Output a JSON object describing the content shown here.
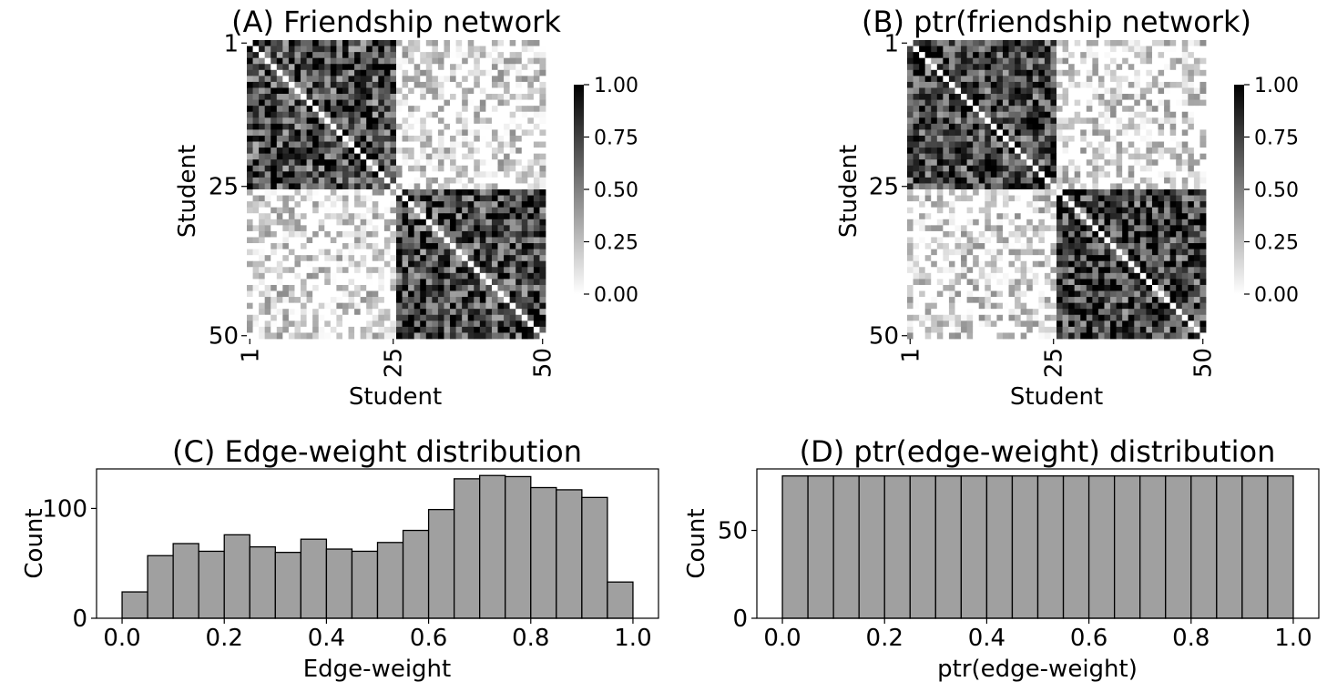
{
  "chart_data": [
    {
      "type": "heatmap",
      "title": "(A) Friendship network",
      "xlabel": "Student",
      "ylabel": "Student",
      "n": 50,
      "tick_labels": [
        "1",
        "25",
        "50"
      ],
      "tick_positions": [
        1,
        25,
        50
      ],
      "colorbar_ticks": [
        "0.00",
        "0.25",
        "0.50",
        "0.75",
        "1.00"
      ],
      "colorbar_range": [
        0,
        1
      ],
      "colormap": [
        "#ffffff",
        "#000000"
      ],
      "block_structure": {
        "block_boundary": 25,
        "within_block_mean": 0.68,
        "between_block_mean": 0.12
      }
    },
    {
      "type": "heatmap",
      "title": "(B) ptr(friendship network)",
      "xlabel": "Student",
      "ylabel": "Student",
      "n": 50,
      "tick_labels": [
        "1",
        "25",
        "50"
      ],
      "tick_positions": [
        1,
        25,
        50
      ],
      "colorbar_ticks": [
        "0.00",
        "0.25",
        "0.50",
        "0.75",
        "1.00"
      ],
      "colorbar_range": [
        0,
        1
      ],
      "colormap": [
        "#ffffff",
        "#000000"
      ],
      "block_structure": {
        "block_boundary": 25,
        "within_block_mean": 0.7,
        "between_block_mean": 0.13
      }
    },
    {
      "type": "bar",
      "title": "(C) Edge-weight distribution",
      "xlabel": "Edge-weight",
      "ylabel": "Count",
      "bin_edges": [
        0.0,
        0.05,
        0.1,
        0.15,
        0.2,
        0.25,
        0.3,
        0.35,
        0.4,
        0.45,
        0.5,
        0.55,
        0.6,
        0.65,
        0.7,
        0.75,
        0.8,
        0.85,
        0.9,
        0.95,
        1.0
      ],
      "values": [
        24,
        57,
        68,
        61,
        76,
        65,
        60,
        72,
        63,
        61,
        69,
        80,
        99,
        127,
        130,
        129,
        119,
        117,
        110,
        33
      ],
      "xlim": [
        -0.05,
        1.05
      ],
      "ylim": [
        0,
        136
      ],
      "xticks": [
        0.0,
        0.2,
        0.4,
        0.6,
        0.8,
        1.0
      ],
      "xtick_labels": [
        "0.0",
        "0.2",
        "0.4",
        "0.6",
        "0.8",
        "1.0"
      ],
      "yticks": [
        0,
        100
      ],
      "ytick_labels": [
        "0",
        "100"
      ],
      "bar_color": "#a0a0a0"
    },
    {
      "type": "bar",
      "title": "(D) ptr(edge-weight) distribution",
      "xlabel": "ptr(edge-weight)",
      "ylabel": "Count",
      "bin_edges": [
        0.0,
        0.05,
        0.1,
        0.15,
        0.2,
        0.25,
        0.3,
        0.35,
        0.4,
        0.45,
        0.5,
        0.55,
        0.6,
        0.65,
        0.7,
        0.75,
        0.8,
        0.85,
        0.9,
        0.95,
        1.0
      ],
      "values": [
        81,
        81,
        81,
        81,
        81,
        81,
        81,
        81,
        81,
        81,
        81,
        81,
        81,
        81,
        81,
        81,
        81,
        81,
        81,
        81
      ],
      "xlim": [
        -0.05,
        1.05
      ],
      "ylim": [
        0,
        85
      ],
      "xticks": [
        0.0,
        0.2,
        0.4,
        0.6,
        0.8,
        1.0
      ],
      "xtick_labels": [
        "0.0",
        "0.2",
        "0.4",
        "0.6",
        "0.8",
        "1.0"
      ],
      "yticks": [
        0,
        50
      ],
      "ytick_labels": [
        "0",
        "50"
      ],
      "bar_color": "#a0a0a0"
    }
  ]
}
